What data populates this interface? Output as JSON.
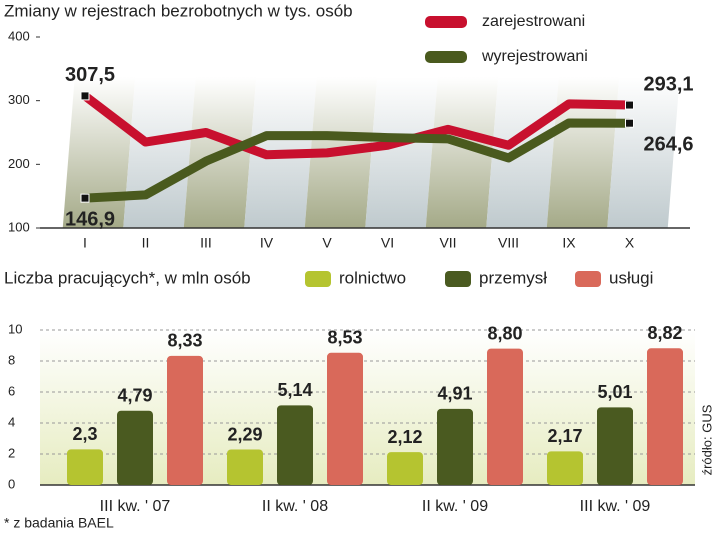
{
  "charts": [
    {
      "type": "line",
      "title": "Zmiany w rejestrach bezrobotnych w tys. osób",
      "categories": [
        "I",
        "II",
        "III",
        "IV",
        "V",
        "VI",
        "VII",
        "VIII",
        "IX",
        "X"
      ],
      "series": [
        {
          "name": "zarejestrowani",
          "color": "#c8102e",
          "values": [
            307.5,
            235,
            250,
            215,
            218,
            230,
            255,
            230,
            295,
            293.1
          ],
          "value_labels": [
            "307,5",
            null,
            null,
            null,
            null,
            null,
            null,
            null,
            null,
            "293,1"
          ]
        },
        {
          "name": "wyrejestrowani",
          "color": "#4a5a1e",
          "values": [
            146.9,
            152,
            205,
            245,
            245,
            242,
            240,
            210,
            265,
            264.6
          ],
          "value_labels": [
            "146,9",
            null,
            null,
            null,
            null,
            null,
            null,
            null,
            null,
            "264,6"
          ]
        }
      ],
      "ylim": [
        100,
        400
      ],
      "yticks": [
        100,
        200,
        300,
        400
      ],
      "grid": false
    },
    {
      "type": "bar",
      "title": "Liczba pracujących*, w mln osób",
      "categories": [
        "III kw. ' 07",
        "II kw. ' 08",
        "II kw. ' 09",
        "III kw. ' 09"
      ],
      "series": [
        {
          "name": "rolnictwo",
          "color": "#b5c430",
          "values": [
            2.3,
            2.29,
            2.12,
            2.17
          ],
          "value_labels": [
            "2,3",
            "2,29",
            "2,12",
            "2,17"
          ]
        },
        {
          "name": "przemysł",
          "color": "#4a5a20",
          "values": [
            4.79,
            5.14,
            4.91,
            5.01
          ],
          "value_labels": [
            "4,79",
            "5,14",
            "4,91",
            "5,01"
          ]
        },
        {
          "name": "usługi",
          "color": "#d9695a",
          "values": [
            8.33,
            8.53,
            8.8,
            8.82
          ],
          "value_labels": [
            "8,33",
            "8,53",
            "8,80",
            "8,82"
          ]
        }
      ],
      "ylim": [
        0,
        10
      ],
      "yticks": [
        0,
        2,
        4,
        6,
        8,
        10
      ],
      "grid": true
    }
  ],
  "footnote": "* z badania BAEL",
  "source": "źródło: GUS"
}
